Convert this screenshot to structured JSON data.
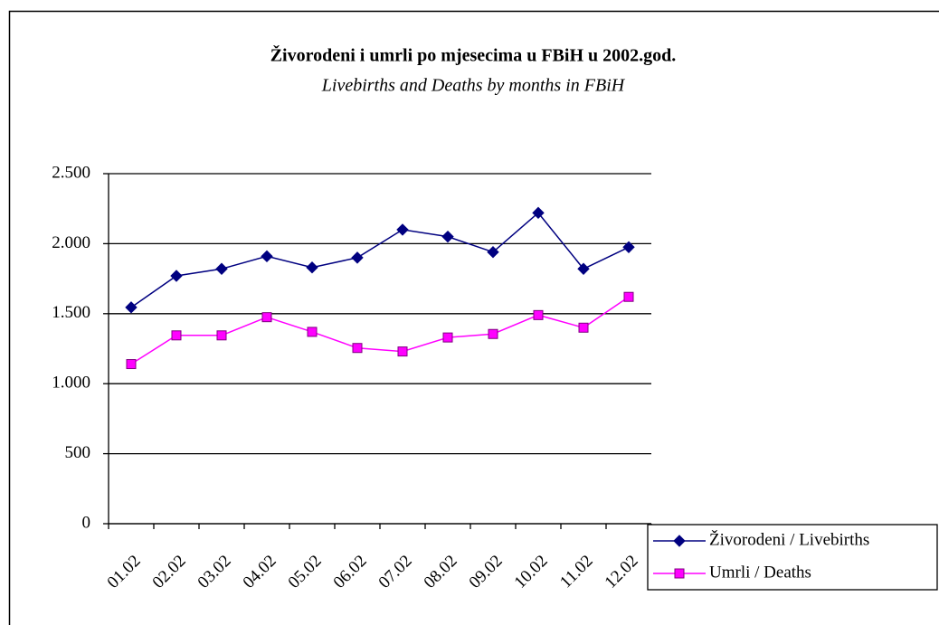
{
  "chart_data": {
    "type": "line",
    "title": "Živorodeni i umrli po mjesecima u FBiH u 2002.god.",
    "subtitle": "Livebirths and Deaths by months in FBiH",
    "categories": [
      "01.02",
      "02.02",
      "03.02",
      "04.02",
      "05.02",
      "06.02",
      "07.02",
      "08.02",
      "09.02",
      "10.02",
      "11.02",
      "12.02"
    ],
    "series": [
      {
        "name": "Živorodeni / Livebirths",
        "color": "#000080",
        "marker": "diamond",
        "values": [
          1545,
          1770,
          1820,
          1910,
          1830,
          1900,
          2100,
          2050,
          1940,
          2220,
          1820,
          1975
        ]
      },
      {
        "name": "Umrli / Deaths",
        "color": "#ff00ff",
        "marker": "square",
        "values": [
          1140,
          1345,
          1345,
          1475,
          1370,
          1255,
          1230,
          1330,
          1355,
          1490,
          1400,
          1620
        ]
      }
    ],
    "ylim": [
      0,
      2500
    ],
    "yticks": [
      0,
      500,
      {
        "value": 1000,
        "label": "1.000"
      },
      {
        "value": 1500,
        "label": "1.500"
      },
      {
        "value": 2000,
        "label": "2.000"
      },
      {
        "value": 2500,
        "label": "2.500"
      }
    ],
    "grid": true,
    "legend": "bottom-right"
  }
}
